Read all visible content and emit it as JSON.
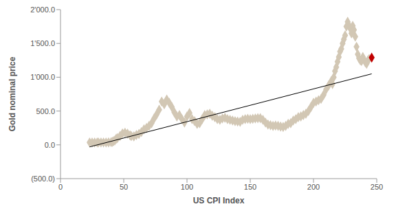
{
  "chart_data": {
    "type": "scatter",
    "x_label": "US CPI Index",
    "y_label": "Gold nominal price",
    "xlim": [
      0,
      250
    ],
    "xticks": [
      0,
      50,
      100,
      150,
      200,
      250
    ],
    "ylim": [
      -500,
      2000
    ],
    "yticks": [
      {
        "value": -500,
        "label": "(500.0)"
      },
      {
        "value": 0,
        "label": "0.0"
      },
      {
        "value": 500,
        "label": "500.0"
      },
      {
        "value": 1000,
        "label": "1'000.0"
      },
      {
        "value": 1500,
        "label": "1'500.0"
      },
      {
        "value": 2000,
        "label": "2'000.0"
      }
    ],
    "grid": false,
    "series": [
      {
        "type": "scatter",
        "marker": "diamond",
        "color": "#d2c7b4",
        "x": [
          23,
          25,
          27,
          29,
          30,
          32,
          34,
          36,
          38,
          40,
          41,
          42,
          43,
          44,
          45,
          47,
          49,
          51,
          53,
          55,
          56,
          58,
          60,
          62,
          64,
          66,
          68,
          70,
          72,
          74,
          76,
          78,
          80,
          82,
          84,
          86,
          88,
          90,
          92,
          94,
          96,
          98,
          100,
          102,
          104,
          106,
          108,
          110,
          112,
          114,
          116,
          118,
          120,
          122,
          124,
          126,
          128,
          130,
          132,
          134,
          136,
          138,
          140,
          142,
          144,
          146,
          148,
          150,
          152,
          154,
          156,
          158,
          160,
          162,
          164,
          166,
          168,
          170,
          172,
          174,
          176,
          178,
          180,
          182,
          184,
          186,
          188,
          190,
          192,
          194,
          196,
          198,
          200,
          202,
          204,
          206,
          208,
          210,
          212,
          214,
          215,
          216,
          217,
          218,
          219,
          220,
          221,
          222,
          223,
          224,
          225,
          226,
          227,
          228,
          229,
          230,
          231,
          232,
          233,
          234,
          235,
          236,
          237,
          238,
          239,
          240,
          241,
          242,
          243,
          244
        ],
        "values": [
          35,
          35,
          35,
          35,
          35,
          35,
          35,
          35,
          36,
          40,
          44,
          55,
          65,
          90,
          100,
          130,
          170,
          180,
          165,
          140,
          130,
          125,
          145,
          160,
          190,
          230,
          250,
          280,
          320,
          390,
          450,
          520,
          640,
          600,
          670,
          620,
          560,
          480,
          420,
          440,
          380,
          330,
          420,
          470,
          380,
          350,
          310,
          320,
          380,
          440,
          450,
          460,
          430,
          410,
          380,
          370,
          390,
          400,
          380,
          370,
          360,
          350,
          345,
          340,
          370,
          380,
          385,
          380,
          385,
          390,
          395,
          395,
          370,
          330,
          300,
          290,
          280,
          285,
          280,
          270,
          265,
          280,
          310,
          320,
          360,
          380,
          410,
          420,
          440,
          460,
          500,
          560,
          620,
          640,
          660,
          680,
          740,
          820,
          880,
          940,
          900,
          1000,
          1090,
          1150,
          1230,
          1300,
          1380,
          1420,
          1500,
          1560,
          1620,
          1750,
          1820,
          1770,
          1720,
          1650,
          1760,
          1700,
          1600,
          1450,
          1340,
          1280,
          1250,
          1240,
          1300,
          1260,
          1220,
          1200,
          1250,
          1270
        ]
      },
      {
        "type": "line",
        "color": "#000000",
        "x": [
          23,
          246
        ],
        "values": [
          -30,
          1050
        ]
      },
      {
        "type": "scatter",
        "marker": "diamond",
        "color": "#c00000",
        "x": [
          246
        ],
        "values": [
          1290
        ]
      }
    ]
  }
}
